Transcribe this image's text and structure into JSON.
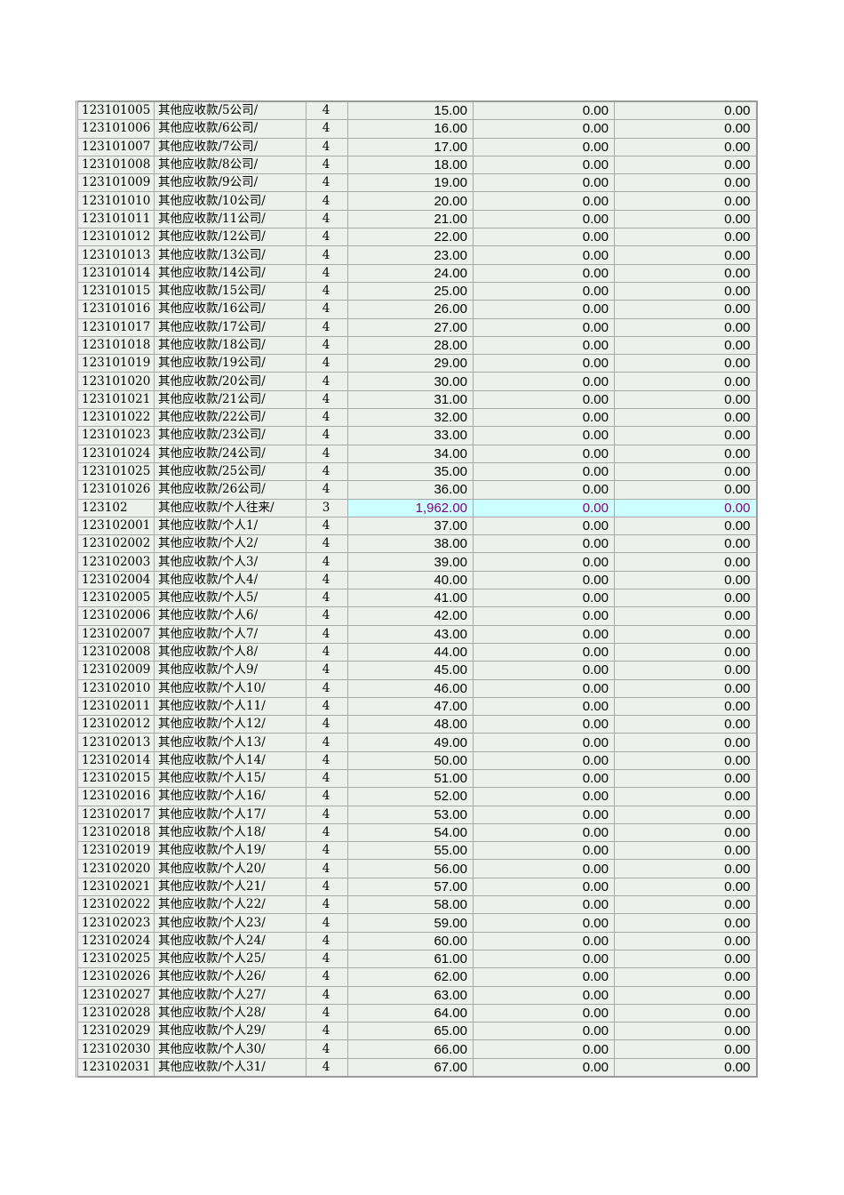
{
  "highlight_color": "#ccffff",
  "highlight_text_color": "#800080",
  "rows": [
    [
      "123101005",
      "其他应收款/5公司/",
      "4",
      "15.00",
      "0.00",
      "0.00"
    ],
    [
      "123101006",
      "其他应收款/6公司/",
      "4",
      "16.00",
      "0.00",
      "0.00"
    ],
    [
      "123101007",
      "其他应收款/7公司/",
      "4",
      "17.00",
      "0.00",
      "0.00"
    ],
    [
      "123101008",
      "其他应收款/8公司/",
      "4",
      "18.00",
      "0.00",
      "0.00"
    ],
    [
      "123101009",
      "其他应收款/9公司/",
      "4",
      "19.00",
      "0.00",
      "0.00"
    ],
    [
      "123101010",
      "其他应收款/10公司/",
      "4",
      "20.00",
      "0.00",
      "0.00"
    ],
    [
      "123101011",
      "其他应收款/11公司/",
      "4",
      "21.00",
      "0.00",
      "0.00"
    ],
    [
      "123101012",
      "其他应收款/12公司/",
      "4",
      "22.00",
      "0.00",
      "0.00"
    ],
    [
      "123101013",
      "其他应收款/13公司/",
      "4",
      "23.00",
      "0.00",
      "0.00"
    ],
    [
      "123101014",
      "其他应收款/14公司/",
      "4",
      "24.00",
      "0.00",
      "0.00"
    ],
    [
      "123101015",
      "其他应收款/15公司/",
      "4",
      "25.00",
      "0.00",
      "0.00"
    ],
    [
      "123101016",
      "其他应收款/16公司/",
      "4",
      "26.00",
      "0.00",
      "0.00"
    ],
    [
      "123101017",
      "其他应收款/17公司/",
      "4",
      "27.00",
      "0.00",
      "0.00"
    ],
    [
      "123101018",
      "其他应收款/18公司/",
      "4",
      "28.00",
      "0.00",
      "0.00"
    ],
    [
      "123101019",
      "其他应收款/19公司/",
      "4",
      "29.00",
      "0.00",
      "0.00"
    ],
    [
      "123101020",
      "其他应收款/20公司/",
      "4",
      "30.00",
      "0.00",
      "0.00"
    ],
    [
      "123101021",
      "其他应收款/21公司/",
      "4",
      "31.00",
      "0.00",
      "0.00"
    ],
    [
      "123101022",
      "其他应收款/22公司/",
      "4",
      "32.00",
      "0.00",
      "0.00"
    ],
    [
      "123101023",
      "其他应收款/23公司/",
      "4",
      "33.00",
      "0.00",
      "0.00"
    ],
    [
      "123101024",
      "其他应收款/24公司/",
      "4",
      "34.00",
      "0.00",
      "0.00"
    ],
    [
      "123101025",
      "其他应收款/25公司/",
      "4",
      "35.00",
      "0.00",
      "0.00"
    ],
    [
      "123101026",
      "其他应收款/26公司/",
      "4",
      "36.00",
      "0.00",
      "0.00"
    ],
    [
      "123102",
      "其他应收款/个人往来/",
      "3",
      "1,962.00",
      "0.00",
      "0.00"
    ],
    [
      "123102001",
      "其他应收款/个人1/",
      "4",
      "37.00",
      "0.00",
      "0.00"
    ],
    [
      "123102002",
      "其他应收款/个人2/",
      "4",
      "38.00",
      "0.00",
      "0.00"
    ],
    [
      "123102003",
      "其他应收款/个人3/",
      "4",
      "39.00",
      "0.00",
      "0.00"
    ],
    [
      "123102004",
      "其他应收款/个人4/",
      "4",
      "40.00",
      "0.00",
      "0.00"
    ],
    [
      "123102005",
      "其他应收款/个人5/",
      "4",
      "41.00",
      "0.00",
      "0.00"
    ],
    [
      "123102006",
      "其他应收款/个人6/",
      "4",
      "42.00",
      "0.00",
      "0.00"
    ],
    [
      "123102007",
      "其他应收款/个人7/",
      "4",
      "43.00",
      "0.00",
      "0.00"
    ],
    [
      "123102008",
      "其他应收款/个人8/",
      "4",
      "44.00",
      "0.00",
      "0.00"
    ],
    [
      "123102009",
      "其他应收款/个人9/",
      "4",
      "45.00",
      "0.00",
      "0.00"
    ],
    [
      "123102010",
      "其他应收款/个人10/",
      "4",
      "46.00",
      "0.00",
      "0.00"
    ],
    [
      "123102011",
      "其他应收款/个人11/",
      "4",
      "47.00",
      "0.00",
      "0.00"
    ],
    [
      "123102012",
      "其他应收款/个人12/",
      "4",
      "48.00",
      "0.00",
      "0.00"
    ],
    [
      "123102013",
      "其他应收款/个人13/",
      "4",
      "49.00",
      "0.00",
      "0.00"
    ],
    [
      "123102014",
      "其他应收款/个人14/",
      "4",
      "50.00",
      "0.00",
      "0.00"
    ],
    [
      "123102015",
      "其他应收款/个人15/",
      "4",
      "51.00",
      "0.00",
      "0.00"
    ],
    [
      "123102016",
      "其他应收款/个人16/",
      "4",
      "52.00",
      "0.00",
      "0.00"
    ],
    [
      "123102017",
      "其他应收款/个人17/",
      "4",
      "53.00",
      "0.00",
      "0.00"
    ],
    [
      "123102018",
      "其他应收款/个人18/",
      "4",
      "54.00",
      "0.00",
      "0.00"
    ],
    [
      "123102019",
      "其他应收款/个人19/",
      "4",
      "55.00",
      "0.00",
      "0.00"
    ],
    [
      "123102020",
      "其他应收款/个人20/",
      "4",
      "56.00",
      "0.00",
      "0.00"
    ],
    [
      "123102021",
      "其他应收款/个人21/",
      "4",
      "57.00",
      "0.00",
      "0.00"
    ],
    [
      "123102022",
      "其他应收款/个人22/",
      "4",
      "58.00",
      "0.00",
      "0.00"
    ],
    [
      "123102023",
      "其他应收款/个人23/",
      "4",
      "59.00",
      "0.00",
      "0.00"
    ],
    [
      "123102024",
      "其他应收款/个人24/",
      "4",
      "60.00",
      "0.00",
      "0.00"
    ],
    [
      "123102025",
      "其他应收款/个人25/",
      "4",
      "61.00",
      "0.00",
      "0.00"
    ],
    [
      "123102026",
      "其他应收款/个人26/",
      "4",
      "62.00",
      "0.00",
      "0.00"
    ],
    [
      "123102027",
      "其他应收款/个人27/",
      "4",
      "63.00",
      "0.00",
      "0.00"
    ],
    [
      "123102028",
      "其他应收款/个人28/",
      "4",
      "64.00",
      "0.00",
      "0.00"
    ],
    [
      "123102029",
      "其他应收款/个人29/",
      "4",
      "65.00",
      "0.00",
      "0.00"
    ],
    [
      "123102030",
      "其他应收款/个人30/",
      "4",
      "66.00",
      "0.00",
      "0.00"
    ],
    [
      "123102031",
      "其他应收款/个人31/",
      "4",
      "67.00",
      "0.00",
      "0.00"
    ]
  ],
  "highlighted_row_index": 22
}
